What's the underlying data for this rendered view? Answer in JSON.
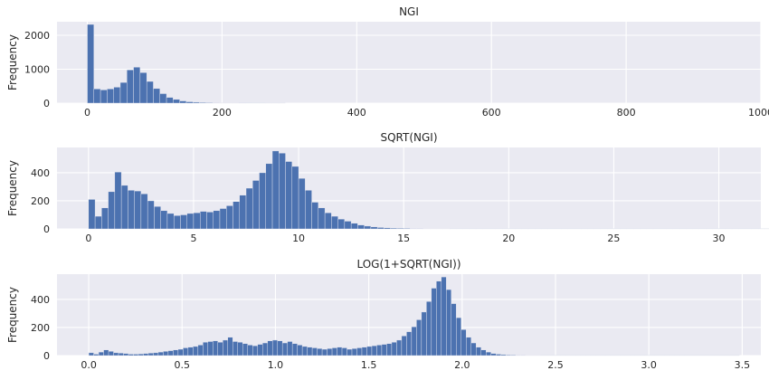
{
  "chart_data": [
    {
      "type": "bar",
      "title": "NGI",
      "xlabel": "",
      "ylabel": "Frequency",
      "xlim": [
        -45,
        1000
      ],
      "ylim": [
        0,
        2400
      ],
      "xticks": [
        0,
        200,
        400,
        600,
        800,
        1000
      ],
      "yticks": [
        0,
        1000,
        2000
      ],
      "bin_start": 0,
      "bin_width": 9.8,
      "values": [
        2320,
        420,
        390,
        420,
        470,
        610,
        980,
        1060,
        900,
        640,
        430,
        280,
        170,
        110,
        65,
        40,
        28,
        20,
        15,
        12,
        10,
        8,
        6,
        5,
        4,
        3,
        3,
        2,
        2,
        2
      ]
    },
    {
      "type": "bar",
      "title": "SQRT(NGI)",
      "xlabel": "",
      "ylabel": "Frequency",
      "xlim": [
        -1.5,
        32
      ],
      "ylim": [
        0,
        580
      ],
      "xticks": [
        0,
        5,
        10,
        15,
        20,
        25,
        30
      ],
      "yticks": [
        0,
        200,
        400
      ],
      "bin_start": 0,
      "bin_width": 0.3125,
      "values": [
        210,
        90,
        150,
        265,
        405,
        310,
        275,
        270,
        250,
        200,
        160,
        130,
        110,
        95,
        100,
        110,
        115,
        125,
        120,
        130,
        145,
        165,
        195,
        240,
        290,
        345,
        400,
        465,
        555,
        540,
        480,
        445,
        360,
        275,
        190,
        150,
        115,
        90,
        70,
        55,
        40,
        28,
        20,
        14,
        10,
        8,
        6,
        5,
        4,
        3,
        3,
        2,
        2,
        2,
        2,
        1,
        1,
        1,
        1,
        1,
        1,
        1,
        1,
        1,
        1,
        1,
        1,
        1,
        1,
        1,
        1,
        1,
        1,
        1,
        1,
        1,
        1,
        1,
        1,
        1,
        1,
        1,
        1,
        1,
        1,
        1,
        1,
        1,
        1,
        1,
        1,
        1,
        1,
        1,
        1,
        1,
        1,
        1,
        1,
        1,
        1,
        1,
        1,
        1,
        1,
        1,
        1,
        1,
        1,
        1,
        1,
        1,
        1,
        1,
        1,
        1,
        1,
        1,
        1,
        1,
        1,
        1,
        1,
        1,
        1,
        1,
        1,
        1,
        1,
        1,
        1,
        1,
        1,
        1,
        1,
        1,
        1,
        1,
        1,
        1,
        1,
        1,
        1,
        1,
        1,
        1,
        1,
        1,
        1,
        1
      ]
    },
    {
      "type": "bar",
      "title": "LOG(1+SQRT(NGI))",
      "xlabel": "",
      "ylabel": "Frequency",
      "xlim": [
        -0.17,
        3.6
      ],
      "ylim": [
        0,
        580
      ],
      "xticks": [
        0.0,
        0.5,
        1.0,
        1.5,
        2.0,
        2.5,
        3.0,
        3.5
      ],
      "yticks": [
        0,
        200,
        400
      ],
      "bin_start": 0,
      "bin_width": 0.0266,
      "values": [
        20,
        10,
        25,
        40,
        30,
        20,
        18,
        15,
        10,
        10,
        12,
        15,
        18,
        20,
        25,
        30,
        35,
        40,
        45,
        55,
        60,
        65,
        75,
        95,
        100,
        105,
        95,
        110,
        130,
        100,
        95,
        85,
        75,
        70,
        80,
        90,
        105,
        110,
        105,
        90,
        100,
        85,
        75,
        65,
        60,
        55,
        50,
        45,
        50,
        55,
        60,
        55,
        45,
        50,
        55,
        60,
        65,
        70,
        75,
        80,
        85,
        95,
        110,
        140,
        170,
        205,
        255,
        310,
        385,
        480,
        530,
        560,
        470,
        370,
        270,
        185,
        130,
        90,
        60,
        40,
        25,
        15,
        10,
        7,
        5,
        4,
        3,
        3,
        2,
        2,
        2,
        1,
        1,
        1,
        1,
        1,
        1,
        1,
        1,
        1,
        1,
        1,
        1,
        1,
        1,
        1,
        1,
        1,
        1,
        1,
        1,
        1,
        1,
        1,
        1,
        1,
        1,
        1,
        1,
        1,
        1,
        1,
        1,
        1,
        1,
        1,
        1,
        1,
        1,
        1,
        1
      ]
    }
  ],
  "colors": {
    "bar": "#4c72b0",
    "plot_bg": "#eaeaf2",
    "grid": "#ffffff",
    "text": "#262626"
  },
  "grid": true
}
